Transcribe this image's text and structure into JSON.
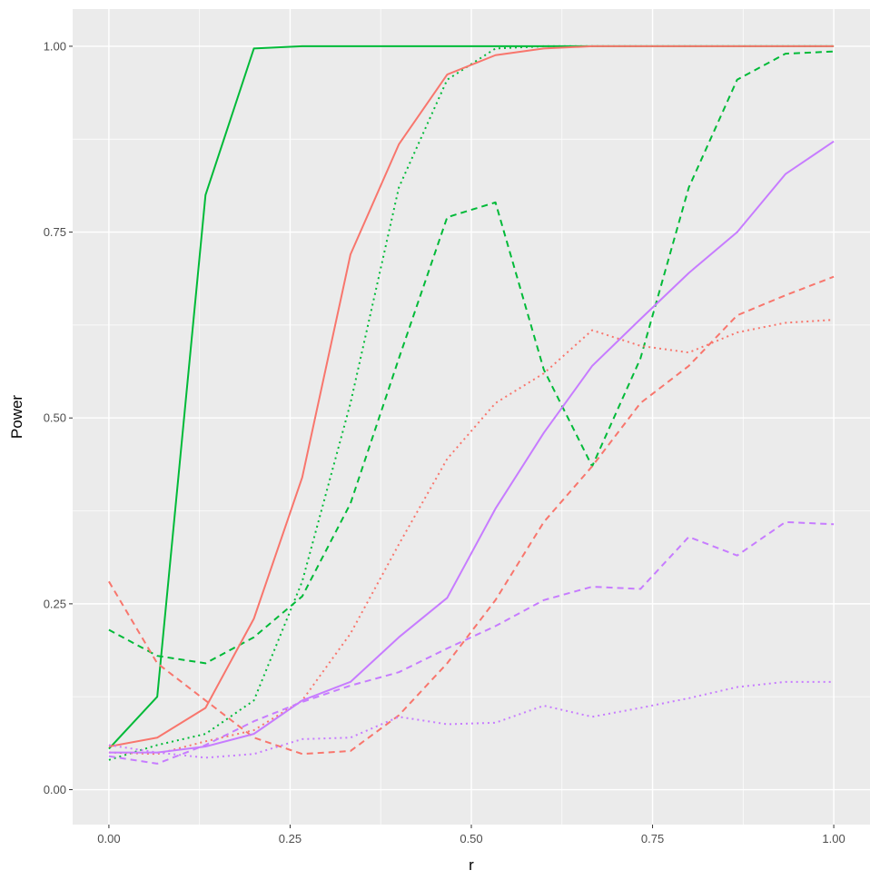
{
  "chart_data": {
    "type": "line",
    "xlabel": "r",
    "ylabel": "Power",
    "xlim": [
      -0.05,
      1.05
    ],
    "ylim": [
      -0.047,
      1.05
    ],
    "x_ticks": [
      0,
      0.25,
      0.5,
      0.75,
      1
    ],
    "x_tick_labels": [
      "0.00",
      "0.25",
      "0.50",
      "0.75",
      "1.00"
    ],
    "y_ticks": [
      0,
      0.25,
      0.5,
      0.75,
      1
    ],
    "y_tick_labels": [
      "0.00",
      "0.25",
      "0.50",
      "0.75",
      "1.00"
    ],
    "grid": true,
    "legend": "none",
    "background": "#ebebeb",
    "x": [
      0,
      0.0667,
      0.1333,
      0.2,
      0.2667,
      0.3333,
      0.4,
      0.4667,
      0.5333,
      0.6,
      0.6667,
      0.7333,
      0.8,
      0.8667,
      0.9333,
      1.0
    ],
    "series": [
      {
        "color": "#00ba38",
        "linetype": "solid",
        "values": [
          0.055,
          0.125,
          0.8,
          0.997,
          1.0,
          1.0,
          1.0,
          1.0,
          1.0,
          1.0,
          1.0,
          1.0,
          1.0,
          1.0,
          1.0,
          1.0
        ]
      },
      {
        "color": "#00ba38",
        "linetype": "dotted",
        "values": [
          0.04,
          0.06,
          0.075,
          0.12,
          0.28,
          0.52,
          0.81,
          0.955,
          0.997,
          1.0,
          1.0,
          1.0,
          1.0,
          1.0,
          1.0,
          1.0
        ]
      },
      {
        "color": "#00ba38",
        "linetype": "dashed",
        "values": [
          0.215,
          0.18,
          0.17,
          0.205,
          0.26,
          0.385,
          0.58,
          0.77,
          0.79,
          0.565,
          0.435,
          0.58,
          0.81,
          0.955,
          0.99,
          0.993
        ]
      },
      {
        "color": "#f8766d",
        "linetype": "solid",
        "values": [
          0.058,
          0.07,
          0.11,
          0.23,
          0.42,
          0.72,
          0.868,
          0.962,
          0.988,
          0.997,
          1.0,
          1.0,
          1.0,
          1.0,
          1.0,
          1.0
        ]
      },
      {
        "color": "#f8766d",
        "linetype": "dotted",
        "values": [
          0.05,
          0.048,
          0.065,
          0.08,
          0.12,
          0.21,
          0.33,
          0.445,
          0.52,
          0.56,
          0.618,
          0.597,
          0.588,
          0.615,
          0.628,
          0.632
        ]
      },
      {
        "color": "#f8766d",
        "linetype": "dashed",
        "values": [
          0.28,
          0.17,
          0.12,
          0.07,
          0.048,
          0.052,
          0.1,
          0.17,
          0.255,
          0.36,
          0.435,
          0.52,
          0.57,
          0.638,
          0.665,
          0.69
        ]
      },
      {
        "color": "#c77cff",
        "linetype": "solid",
        "values": [
          0.05,
          0.05,
          0.058,
          0.075,
          0.12,
          0.145,
          0.205,
          0.258,
          0.378,
          0.48,
          0.57,
          0.633,
          0.695,
          0.75,
          0.828,
          0.872
        ]
      },
      {
        "color": "#c77cff",
        "linetype": "dashed",
        "values": [
          0.045,
          0.035,
          0.06,
          0.092,
          0.118,
          0.14,
          0.158,
          0.19,
          0.22,
          0.255,
          0.273,
          0.27,
          0.34,
          0.315,
          0.36,
          0.357
        ]
      },
      {
        "color": "#c77cff",
        "linetype": "dotted",
        "values": [
          0.06,
          0.05,
          0.043,
          0.048,
          0.068,
          0.07,
          0.098,
          0.088,
          0.09,
          0.113,
          0.098,
          0.11,
          0.123,
          0.138,
          0.145,
          0.145
        ]
      }
    ]
  }
}
